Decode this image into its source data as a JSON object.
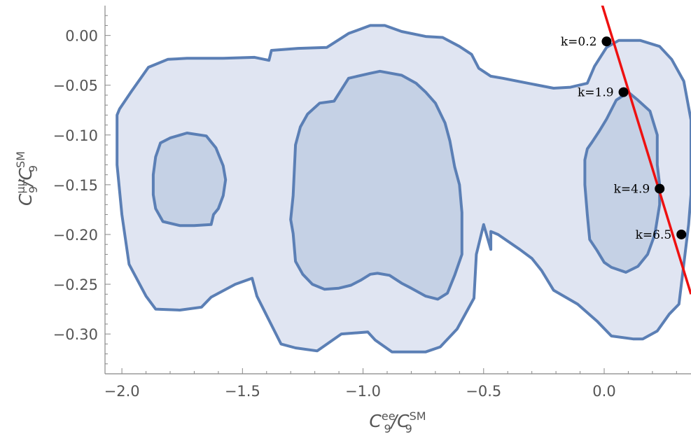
{
  "chart_data": {
    "type": "contour",
    "xlabel": {
      "main": "C",
      "sup": "ee",
      "sub": "9",
      "sep": "/C",
      "sup2": "SM",
      "sub2": "9"
    },
    "ylabel": {
      "main": "C",
      "sup": "μμ",
      "sub": "9",
      "sep": "/C",
      "sup2": "SM",
      "sub2": "9"
    },
    "xlim": [
      -2.07,
      0.36
    ],
    "ylim": [
      -0.34,
      0.03
    ],
    "x_ticks": [
      {
        "value": -2.0,
        "label": "−2.0"
      },
      {
        "value": -1.5,
        "label": "−1.5"
      },
      {
        "value": -1.0,
        "label": "−1.0"
      },
      {
        "value": -0.5,
        "label": "−0.5"
      },
      {
        "value": 0.0,
        "label": "0.0"
      }
    ],
    "y_ticks": [
      {
        "value": 0.0,
        "label": "0.00"
      },
      {
        "value": -0.05,
        "label": "−0.05"
      },
      {
        "value": -0.1,
        "label": "−0.10"
      },
      {
        "value": -0.15,
        "label": "−0.15"
      },
      {
        "value": -0.2,
        "label": "−0.20"
      },
      {
        "value": -0.25,
        "label": "−0.25"
      },
      {
        "value": -0.3,
        "label": "−0.30"
      }
    ],
    "grid": false,
    "colors": {
      "fill_outer": "#e0e5f2",
      "fill_inner": "#c5d1e5",
      "contour_line": "#5b7fb5",
      "line": "#ee1111",
      "point": "#000000"
    },
    "contours": [
      {
        "level": "outer",
        "points": [
          [
            -1.89,
            -0.032
          ],
          [
            -1.81,
            -0.024
          ],
          [
            -1.73,
            -0.023
          ],
          [
            -1.58,
            -0.023
          ],
          [
            -1.45,
            -0.022
          ],
          [
            -1.39,
            -0.025
          ],
          [
            -1.38,
            -0.015
          ],
          [
            -1.27,
            -0.013
          ],
          [
            -1.15,
            -0.012
          ],
          [
            -1.06,
            0.002
          ],
          [
            -0.97,
            0.01
          ],
          [
            -0.91,
            0.01
          ],
          [
            -0.84,
            0.004
          ],
          [
            -0.74,
            -0.001
          ],
          [
            -0.67,
            -0.002
          ],
          [
            -0.6,
            -0.011
          ],
          [
            -0.55,
            -0.019
          ],
          [
            -0.52,
            -0.033
          ],
          [
            -0.47,
            -0.041
          ],
          [
            -0.42,
            -0.043
          ],
          [
            -0.38,
            -0.045
          ],
          [
            -0.21,
            -0.053
          ],
          [
            -0.14,
            -0.052
          ],
          [
            -0.07,
            -0.048
          ],
          [
            -0.04,
            -0.031
          ],
          [
            0.01,
            -0.012
          ],
          [
            0.06,
            -0.005
          ],
          [
            0.15,
            -0.005
          ],
          [
            0.23,
            -0.011
          ],
          [
            0.28,
            -0.024
          ],
          [
            0.33,
            -0.046
          ],
          [
            0.36,
            -0.085
          ],
          [
            0.36,
            -0.13
          ],
          [
            0.36,
            -0.16
          ],
          [
            0.35,
            -0.19
          ],
          [
            0.33,
            -0.23
          ],
          [
            0.31,
            -0.27
          ],
          [
            0.27,
            -0.28
          ],
          [
            0.22,
            -0.297
          ],
          [
            0.16,
            -0.305
          ],
          [
            0.12,
            -0.305
          ],
          [
            0.03,
            -0.302
          ],
          [
            -0.03,
            -0.287
          ],
          [
            -0.11,
            -0.27
          ],
          [
            -0.21,
            -0.256
          ],
          [
            -0.26,
            -0.236
          ],
          [
            -0.3,
            -0.224
          ],
          [
            -0.35,
            -0.215
          ],
          [
            -0.44,
            -0.2
          ],
          [
            -0.47,
            -0.197
          ],
          [
            -0.47,
            -0.215
          ],
          [
            -0.5,
            -0.19
          ],
          [
            -0.53,
            -0.22
          ],
          [
            -0.54,
            -0.264
          ],
          [
            -0.61,
            -0.295
          ],
          [
            -0.68,
            -0.313
          ],
          [
            -0.74,
            -0.318
          ],
          [
            -0.88,
            -0.318
          ],
          [
            -0.95,
            -0.306
          ],
          [
            -0.98,
            -0.298
          ],
          [
            -1.09,
            -0.3
          ],
          [
            -1.19,
            -0.317
          ],
          [
            -1.28,
            -0.314
          ],
          [
            -1.34,
            -0.31
          ],
          [
            -1.44,
            -0.262
          ],
          [
            -1.46,
            -0.244
          ],
          [
            -1.53,
            -0.25
          ],
          [
            -1.63,
            -0.263
          ],
          [
            -1.67,
            -0.273
          ],
          [
            -1.76,
            -0.276
          ],
          [
            -1.86,
            -0.275
          ],
          [
            -1.9,
            -0.262
          ],
          [
            -1.97,
            -0.23
          ],
          [
            -2.0,
            -0.18
          ],
          [
            -2.02,
            -0.13
          ],
          [
            -2.02,
            -0.08
          ],
          [
            -2.01,
            -0.074
          ],
          [
            -1.96,
            -0.056
          ]
        ]
      },
      {
        "level": "inner",
        "points": [
          [
            -1.8,
            -0.103
          ],
          [
            -1.73,
            -0.098
          ],
          [
            -1.65,
            -0.101
          ],
          [
            -1.61,
            -0.113
          ],
          [
            -1.58,
            -0.131
          ],
          [
            -1.57,
            -0.145
          ],
          [
            -1.58,
            -0.161
          ],
          [
            -1.6,
            -0.174
          ],
          [
            -1.62,
            -0.18
          ],
          [
            -1.63,
            -0.19
          ],
          [
            -1.7,
            -0.191
          ],
          [
            -1.76,
            -0.191
          ],
          [
            -1.83,
            -0.187
          ],
          [
            -1.86,
            -0.174
          ],
          [
            -1.87,
            -0.16
          ],
          [
            -1.87,
            -0.14
          ],
          [
            -1.86,
            -0.122
          ],
          [
            -1.84,
            -0.108
          ]
        ]
      },
      {
        "level": "inner",
        "points": [
          [
            -1.12,
            -0.066
          ],
          [
            -1.06,
            -0.043
          ],
          [
            -0.97,
            -0.038
          ],
          [
            -0.93,
            -0.036
          ],
          [
            -0.84,
            -0.04
          ],
          [
            -0.78,
            -0.048
          ],
          [
            -0.74,
            -0.057
          ],
          [
            -0.7,
            -0.068
          ],
          [
            -0.66,
            -0.088
          ],
          [
            -0.64,
            -0.106
          ],
          [
            -0.62,
            -0.132
          ],
          [
            -0.6,
            -0.15
          ],
          [
            -0.59,
            -0.178
          ],
          [
            -0.59,
            -0.22
          ],
          [
            -0.62,
            -0.241
          ],
          [
            -0.65,
            -0.259
          ],
          [
            -0.69,
            -0.265
          ],
          [
            -0.74,
            -0.262
          ],
          [
            -0.8,
            -0.254
          ],
          [
            -0.84,
            -0.249
          ],
          [
            -0.89,
            -0.241
          ],
          [
            -0.94,
            -0.239
          ],
          [
            -0.97,
            -0.24
          ],
          [
            -1.01,
            -0.246
          ],
          [
            -1.05,
            -0.251
          ],
          [
            -1.1,
            -0.254
          ],
          [
            -1.16,
            -0.255
          ],
          [
            -1.21,
            -0.25
          ],
          [
            -1.25,
            -0.24
          ],
          [
            -1.28,
            -0.227
          ],
          [
            -1.29,
            -0.199
          ],
          [
            -1.3,
            -0.185
          ],
          [
            -1.29,
            -0.161
          ],
          [
            -1.28,
            -0.11
          ],
          [
            -1.26,
            -0.092
          ],
          [
            -1.23,
            -0.079
          ],
          [
            -1.18,
            -0.068
          ]
        ]
      },
      {
        "level": "inner",
        "points": [
          [
            -0.05,
            -0.107
          ],
          [
            -0.02,
            -0.096
          ],
          [
            0.01,
            -0.084
          ],
          [
            0.05,
            -0.065
          ],
          [
            0.1,
            -0.057
          ],
          [
            0.14,
            -0.065
          ],
          [
            0.19,
            -0.076
          ],
          [
            0.22,
            -0.1
          ],
          [
            0.22,
            -0.13
          ],
          [
            0.23,
            -0.15
          ],
          [
            0.23,
            -0.17
          ],
          [
            0.21,
            -0.2
          ],
          [
            0.18,
            -0.22
          ],
          [
            0.14,
            -0.232
          ],
          [
            0.09,
            -0.238
          ],
          [
            0.03,
            -0.233
          ],
          [
            0.0,
            -0.228
          ],
          [
            -0.03,
            -0.216
          ],
          [
            -0.06,
            -0.205
          ],
          [
            -0.07,
            -0.18
          ],
          [
            -0.08,
            -0.15
          ],
          [
            -0.08,
            -0.125
          ],
          [
            -0.07,
            -0.114
          ]
        ]
      }
    ],
    "line": {
      "color": "#ee1111",
      "points": [
        [
          -0.02,
          0.04
        ],
        [
          0.36,
          -0.26
        ]
      ]
    },
    "points": [
      {
        "label": "k=0.2",
        "x": 0.01,
        "y": -0.006
      },
      {
        "label": "k=1.9",
        "x": 0.08,
        "y": -0.057
      },
      {
        "label": "k=4.9",
        "x": 0.23,
        "y": -0.154
      },
      {
        "label": "k=6.5",
        "x": 0.32,
        "y": -0.2
      }
    ]
  }
}
